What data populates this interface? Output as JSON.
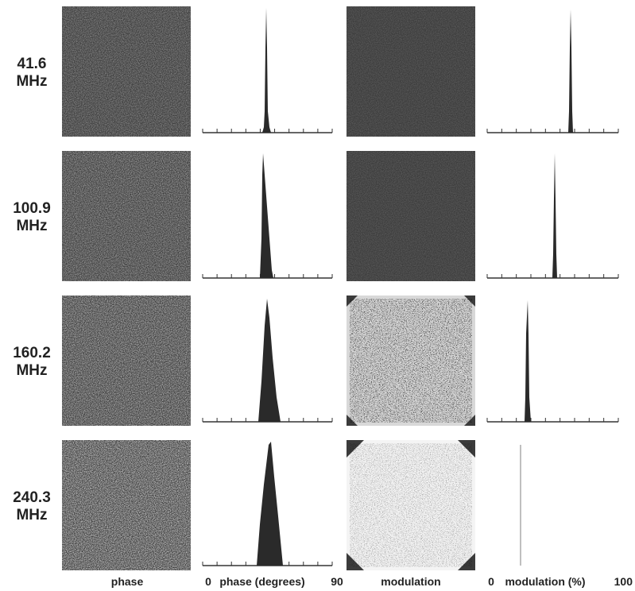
{
  "rows": [
    {
      "frequency": "41.6",
      "unit": "MHz"
    },
    {
      "frequency": "100.9",
      "unit": "MHz"
    },
    {
      "frequency": "160.2",
      "unit": "MHz"
    },
    {
      "frequency": "240.3",
      "unit": "MHz"
    }
  ],
  "columns": {
    "phase_image": "phase",
    "phase_axis": {
      "min": "0",
      "label": "phase (degrees)",
      "max": "90"
    },
    "modulation_image": "modulation",
    "modulation_axis": {
      "min": "0",
      "label": "modulation (%)",
      "max": "100"
    }
  }
}
